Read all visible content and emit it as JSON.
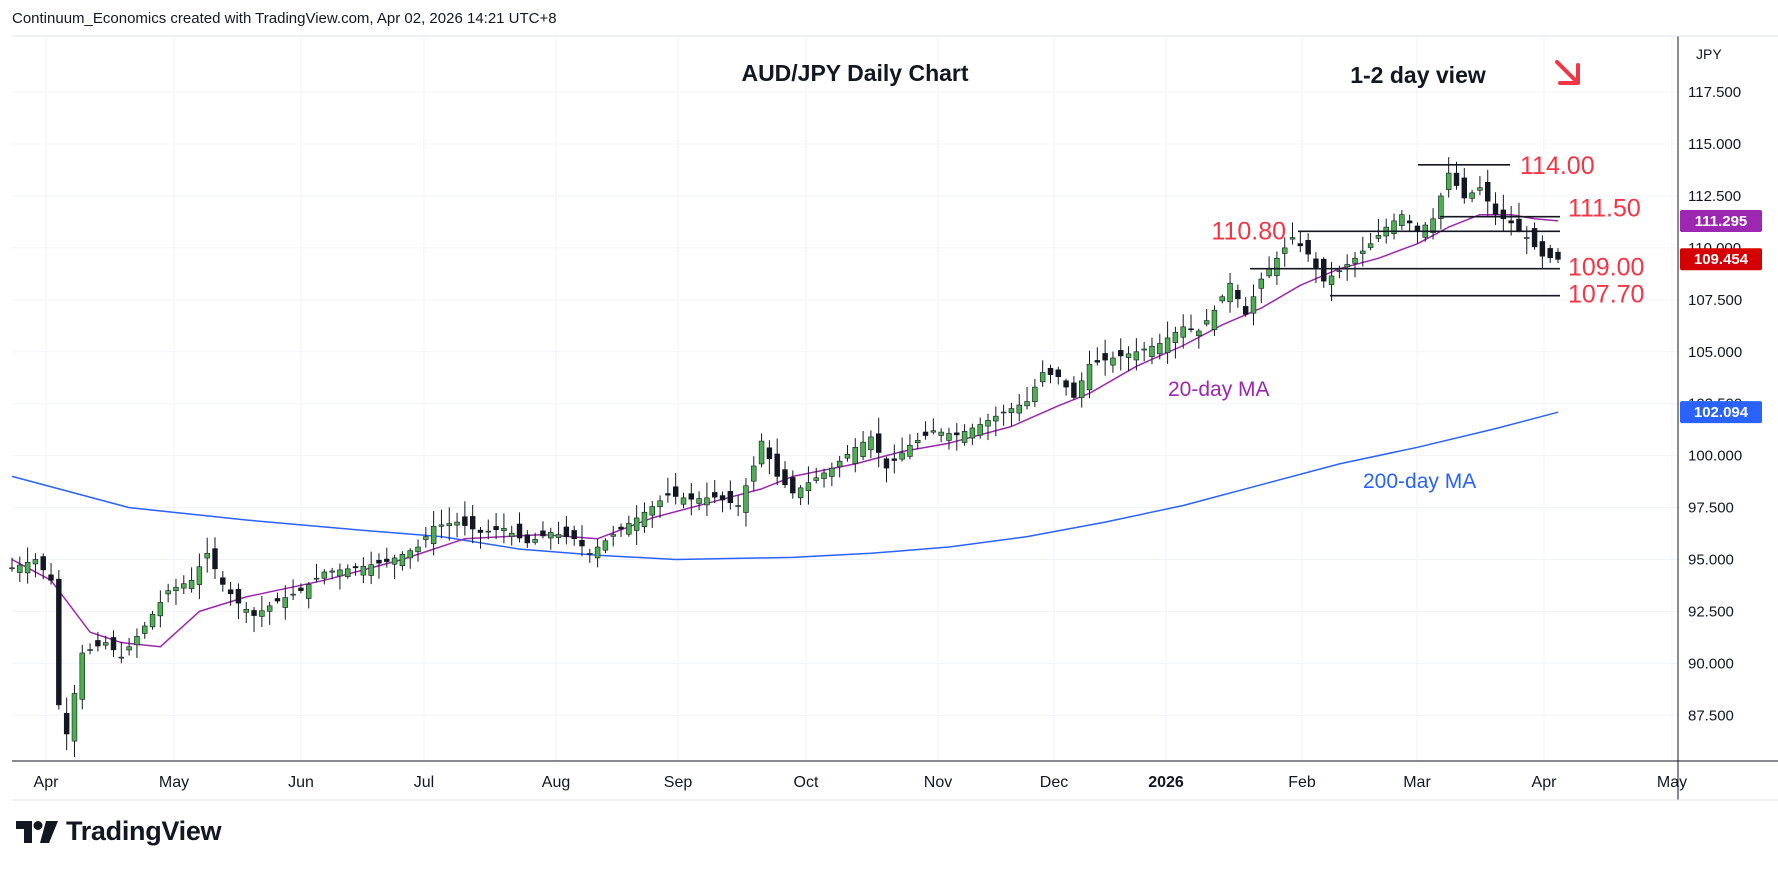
{
  "header": {
    "attribution": "Continuum_Economics created with TradingView.com, Apr 02, 2026 14:21 UTC+8"
  },
  "brand": {
    "name": "TradingView",
    "logo": "tradingview-logo-icon"
  },
  "colors": {
    "up": "#26a69a",
    "up_fill": "#4caf50",
    "down": "#131722",
    "ma20": "#9c27b0",
    "ma200": "#2962ff",
    "level": "#f23645",
    "badge_purple": "#9c27b0",
    "badge_red": "#d50000",
    "badge_blue": "#2962ff",
    "arrow": "#f23645"
  },
  "chart_data": {
    "type": "candlestick",
    "title": "AUD/JPY Daily Chart",
    "view_label": "1-2 day view",
    "view_direction": "down-arrow-icon",
    "currency": "JPY",
    "ylim": [
      85.3,
      120.2
    ],
    "y_ticks": [
      "117.500",
      "115.000",
      "112.500",
      "110.000",
      "107.500",
      "105.000",
      "102.500",
      "100.000",
      "97.500",
      "95.000",
      "92.500",
      "90.000",
      "87.500"
    ],
    "x_ticks": [
      "Apr",
      "May",
      "Jun",
      "Jul",
      "Aug",
      "Sep",
      "Oct",
      "Nov",
      "Dec",
      "2026",
      "Feb",
      "Mar",
      "Apr",
      "May"
    ],
    "price_badges": [
      {
        "label": "111.295",
        "value": 111.295,
        "series": "20-day MA"
      },
      {
        "label": "109.454",
        "value": 109.454,
        "series": "Last price"
      },
      {
        "label": "102.094",
        "value": 102.094,
        "series": "200-day MA"
      }
    ],
    "levels": [
      {
        "label": "114.00",
        "value": 114.0
      },
      {
        "label": "111.50",
        "value": 111.5
      },
      {
        "label": "110.80",
        "value": 110.8
      },
      {
        "label": "109.00",
        "value": 109.0
      },
      {
        "label": "107.70",
        "value": 107.7
      }
    ],
    "moving_averages": [
      {
        "name": "20-day MA",
        "label": "20-day MA"
      },
      {
        "name": "200-day MA",
        "label": "200-day MA"
      }
    ],
    "price_path": [
      [
        0,
        94.6
      ],
      [
        3,
        95.0
      ],
      [
        5,
        94.0
      ],
      [
        6,
        88.0
      ],
      [
        7,
        86.6
      ],
      [
        9,
        90.5
      ],
      [
        12,
        91.0
      ],
      [
        14,
        90.3
      ],
      [
        17,
        91.8
      ],
      [
        20,
        93.5
      ],
      [
        23,
        94.0
      ],
      [
        25,
        95.3
      ],
      [
        27,
        93.8
      ],
      [
        29,
        92.9
      ],
      [
        31,
        92.3
      ],
      [
        34,
        93.0
      ],
      [
        37,
        93.5
      ],
      [
        40,
        94.4
      ],
      [
        44,
        94.6
      ],
      [
        48,
        94.9
      ],
      [
        52,
        95.6
      ],
      [
        54,
        96.6
      ],
      [
        57,
        96.8
      ],
      [
        60,
        96.3
      ],
      [
        63,
        96.5
      ],
      [
        66,
        95.8
      ],
      [
        69,
        96.3
      ],
      [
        72,
        96.0
      ],
      [
        74,
        95.3
      ],
      [
        77,
        96.2
      ],
      [
        80,
        97.0
      ],
      [
        84,
        98.1
      ],
      [
        87,
        97.9
      ],
      [
        90,
        98.0
      ],
      [
        93,
        97.6
      ],
      [
        95,
        99.5
      ],
      [
        96,
        100.7
      ],
      [
        98,
        99.0
      ],
      [
        100,
        98.2
      ],
      [
        102,
        98.7
      ],
      [
        105,
        99.4
      ],
      [
        108,
        100.4
      ],
      [
        110,
        100.9
      ],
      [
        112,
        99.4
      ],
      [
        115,
        100.5
      ],
      [
        118,
        101.2
      ],
      [
        121,
        101.0
      ],
      [
        124,
        101.5
      ],
      [
        127,
        102.1
      ],
      [
        130,
        102.6
      ],
      [
        132,
        104.0
      ],
      [
        134,
        103.8
      ],
      [
        136,
        102.8
      ],
      [
        138,
        104.4
      ],
      [
        141,
        104.7
      ],
      [
        144,
        105.0
      ],
      [
        147,
        105.4
      ],
      [
        150,
        106.2
      ],
      [
        152,
        106.0
      ],
      [
        154,
        107.0
      ],
      [
        156,
        108.3
      ],
      [
        158,
        106.8
      ],
      [
        160,
        108.5
      ],
      [
        162,
        109.5
      ],
      [
        164,
        110.5
      ],
      [
        166,
        109.7
      ],
      [
        168,
        108.4
      ],
      [
        170,
        108.9
      ],
      [
        172,
        109.5
      ],
      [
        174,
        110.2
      ],
      [
        176,
        111.0
      ],
      [
        178,
        111.6
      ],
      [
        180,
        110.8
      ],
      [
        182,
        111.4
      ],
      [
        184,
        113.6
      ],
      [
        186,
        112.4
      ],
      [
        188,
        112.9
      ],
      [
        190,
        111.6
      ],
      [
        192,
        111.2
      ],
      [
        194,
        110.5
      ],
      [
        196,
        109.6
      ],
      [
        198,
        109.45
      ]
    ],
    "ma20_path": [
      [
        0,
        95.0
      ],
      [
        5,
        94.0
      ],
      [
        10,
        91.5
      ],
      [
        14,
        91.0
      ],
      [
        19,
        90.8
      ],
      [
        24,
        92.5
      ],
      [
        30,
        93.2
      ],
      [
        40,
        94.0
      ],
      [
        50,
        95.0
      ],
      [
        58,
        96.0
      ],
      [
        68,
        96.2
      ],
      [
        75,
        96.0
      ],
      [
        82,
        97.0
      ],
      [
        90,
        97.8
      ],
      [
        96,
        98.4
      ],
      [
        100,
        99.0
      ],
      [
        108,
        99.6
      ],
      [
        114,
        100.2
      ],
      [
        120,
        100.6
      ],
      [
        128,
        101.4
      ],
      [
        134,
        102.4
      ],
      [
        138,
        103.0
      ],
      [
        144,
        104.3
      ],
      [
        150,
        105.3
      ],
      [
        155,
        106.3
      ],
      [
        160,
        107.1
      ],
      [
        165,
        108.2
      ],
      [
        170,
        109.0
      ],
      [
        175,
        109.5
      ],
      [
        180,
        110.2
      ],
      [
        184,
        111.0
      ],
      [
        188,
        111.6
      ],
      [
        192,
        111.6
      ],
      [
        195,
        111.4
      ],
      [
        198,
        111.3
      ]
    ],
    "ma200_path": [
      [
        0,
        99.0
      ],
      [
        15,
        97.5
      ],
      [
        30,
        96.9
      ],
      [
        45,
        96.4
      ],
      [
        55,
        96.1
      ],
      [
        65,
        95.5
      ],
      [
        75,
        95.2
      ],
      [
        85,
        95.0
      ],
      [
        100,
        95.1
      ],
      [
        110,
        95.3
      ],
      [
        120,
        95.6
      ],
      [
        130,
        96.1
      ],
      [
        140,
        96.8
      ],
      [
        150,
        97.6
      ],
      [
        160,
        98.6
      ],
      [
        170,
        99.6
      ],
      [
        180,
        100.4
      ],
      [
        190,
        101.3
      ],
      [
        198,
        102.09
      ]
    ]
  }
}
